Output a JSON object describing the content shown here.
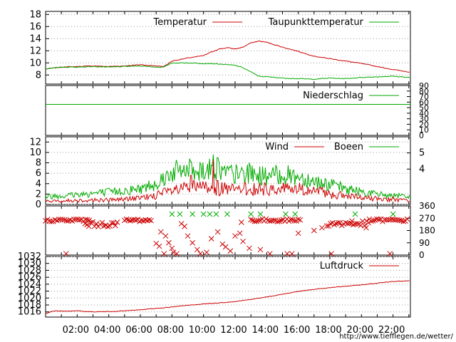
{
  "colors": {
    "temp": "#cc0000",
    "dew": "#00aa00",
    "rain": "#00aa00",
    "wind": "#cc0000",
    "gust": "#00aa00",
    "dir": "#cc0000",
    "dirGust": "#00aa00",
    "press": "#cc0000",
    "grid": "#999999"
  },
  "footer": {
    "url": "http://www.tiefflegen.de/wetter/"
  },
  "chart_data": [
    {
      "type": "line",
      "panel": "temperature",
      "x": [
        0,
        1,
        2,
        3,
        4,
        5,
        6,
        7,
        7.5,
        8,
        9,
        10,
        10.5,
        11,
        11.5,
        12,
        12.5,
        13,
        13.5,
        14,
        14.5,
        15,
        16,
        17,
        18,
        19,
        20,
        21,
        22,
        23
      ],
      "series": [
        {
          "name": "Temperatur",
          "color": "temp",
          "values": [
            9.0,
            9.3,
            9.4,
            9.5,
            9.4,
            9.5,
            9.7,
            9.5,
            9.4,
            10.3,
            10.8,
            11.2,
            11.8,
            12.3,
            12.5,
            12.3,
            12.6,
            13.3,
            13.6,
            13.4,
            13.0,
            12.6,
            11.9,
            11.1,
            10.7,
            10.3,
            9.9,
            9.4,
            8.9,
            8.5
          ]
        },
        {
          "name": "Taupunkttemperatur",
          "color": "dew",
          "values": [
            9.0,
            9.3,
            9.3,
            9.4,
            9.3,
            9.4,
            9.5,
            9.3,
            9.3,
            10.0,
            10.0,
            9.9,
            9.9,
            9.8,
            9.7,
            9.6,
            9.2,
            8.5,
            7.8,
            7.7,
            7.6,
            7.5,
            7.4,
            7.3,
            7.5,
            7.4,
            7.6,
            7.7,
            7.8,
            7.6
          ]
        }
      ],
      "ylim": [
        6.5,
        18.5
      ],
      "yticks": [
        "8",
        "10",
        "12",
        "14",
        "16",
        "18"
      ]
    },
    {
      "type": "line",
      "panel": "precipitation",
      "series": [
        {
          "name": "Niederschlag",
          "color": "rain",
          "constant": 56
        }
      ],
      "ylim": [
        0,
        90
      ],
      "yticks_right": [
        "0",
        "10",
        "20",
        "30",
        "40",
        "50",
        "60",
        "70",
        "80",
        "90"
      ]
    },
    {
      "type": "line",
      "panel": "wind",
      "series": [
        {
          "name": "Wind",
          "color": "wind"
        },
        {
          "name": "Boeen",
          "color": "gust"
        }
      ],
      "envelope_x": [
        0,
        2,
        4,
        6,
        7,
        8,
        9,
        10,
        11,
        12,
        13,
        14,
        15,
        16,
        17,
        18,
        19,
        20,
        21,
        22,
        23
      ],
      "wind_level": [
        0.6,
        0.8,
        0.9,
        1.2,
        1.8,
        2.6,
        3.1,
        3.3,
        3.0,
        2.8,
        3.0,
        2.9,
        3.2,
        3.0,
        2.6,
        2.0,
        1.6,
        1.3,
        1.1,
        1.0,
        0.7
      ],
      "gust_level": [
        1.4,
        1.8,
        2.2,
        2.8,
        3.8,
        5.8,
        6.2,
        6.3,
        6.0,
        5.3,
        5.6,
        5.0,
        5.3,
        5.0,
        4.2,
        3.5,
        2.8,
        2.3,
        1.8,
        1.6,
        1.3
      ],
      "spikes": [
        {
          "x": 10.6,
          "wind": 8.6,
          "gust": 9.6
        },
        {
          "x": 9.2,
          "wind": 5.6,
          "gust": 8.2
        },
        {
          "x": 10.9,
          "wind": 4.6,
          "gust": 9.0
        }
      ],
      "ylim": [
        0,
        13
      ],
      "yticks": [
        "0",
        "2",
        "4",
        "6",
        "8",
        "10",
        "12"
      ],
      "yticks_right": [
        "4",
        "5"
      ]
    },
    {
      "type": "scatter",
      "panel": "wind-direction",
      "ylim": [
        0,
        360
      ],
      "yticks_right": [
        "0",
        "90",
        "180",
        "270",
        "360"
      ],
      "mass_ranges": [
        {
          "x0": 0.0,
          "x1": 2.8,
          "y": 255,
          "spread": 10
        },
        {
          "x0": 2.5,
          "x1": 4.6,
          "y": 225,
          "spread": 18
        },
        {
          "x0": 5.0,
          "x1": 6.8,
          "y": 255,
          "spread": 10
        },
        {
          "x0": 13.0,
          "x1": 16.2,
          "y": 255,
          "spread": 10
        },
        {
          "x0": 17.8,
          "x1": 20.5,
          "y": 230,
          "spread": 20
        },
        {
          "x0": 20.5,
          "x1": 23.0,
          "y": 255,
          "spread": 10
        }
      ],
      "points": [
        [
          7.0,
          85
        ],
        [
          7.2,
          65
        ],
        [
          7.3,
          170
        ],
        [
          7.6,
          140
        ],
        [
          7.8,
          90
        ],
        [
          8.0,
          50
        ],
        [
          8.1,
          20
        ],
        [
          8.3,
          10
        ],
        [
          8.6,
          230
        ],
        [
          8.8,
          210
        ],
        [
          9.0,
          140
        ],
        [
          9.3,
          90
        ],
        [
          9.6,
          40
        ],
        [
          9.8,
          10
        ],
        [
          10.2,
          20
        ],
        [
          10.5,
          120
        ],
        [
          10.9,
          170
        ],
        [
          11.2,
          80
        ],
        [
          11.4,
          60
        ],
        [
          11.7,
          30
        ],
        [
          12.0,
          140
        ],
        [
          12.3,
          160
        ],
        [
          12.5,
          100
        ],
        [
          12.9,
          50
        ],
        [
          12.4,
          240
        ],
        [
          13.6,
          40
        ],
        [
          14.2,
          10
        ],
        [
          16.0,
          160
        ],
        [
          17.0,
          180
        ],
        [
          17.5,
          200
        ],
        [
          18.1,
          10
        ],
        [
          21.8,
          10
        ],
        [
          20.3,
          200
        ],
        [
          19.4,
          250
        ],
        [
          1.3,
          10
        ],
        [
          7.5,
          10
        ],
        [
          15.3,
          10
        ],
        [
          15.6,
          10
        ]
      ],
      "gust_points": [
        [
          8.0,
          300
        ],
        [
          8.5,
          300
        ],
        [
          9.3,
          300
        ],
        [
          10.0,
          300
        ],
        [
          10.4,
          300
        ],
        [
          10.8,
          300
        ],
        [
          11.5,
          300
        ],
        [
          13.0,
          300
        ],
        [
          13.6,
          300
        ],
        [
          15.2,
          300
        ],
        [
          15.8,
          300
        ],
        [
          19.6,
          300
        ],
        [
          22.0,
          300
        ]
      ]
    },
    {
      "type": "line",
      "panel": "pressure",
      "x": [
        0,
        0.5,
        1,
        2,
        3,
        4,
        5,
        6,
        7,
        8,
        9,
        10,
        11,
        12,
        13,
        14,
        15,
        16,
        17,
        18,
        19,
        20,
        21,
        22,
        23
      ],
      "series": [
        {
          "name": "Luftdruck",
          "color": "press",
          "values": [
            1015.5,
            1016.3,
            1016.2,
            1016.3,
            1016.0,
            1016.1,
            1016.3,
            1016.6,
            1017.0,
            1017.4,
            1017.9,
            1018.3,
            1018.6,
            1019.0,
            1019.6,
            1020.3,
            1021.1,
            1021.9,
            1022.5,
            1023.0,
            1023.4,
            1023.8,
            1024.3,
            1024.8,
            1025.0
          ]
        }
      ],
      "ylim": [
        1014.5,
        1032
      ],
      "yticks": [
        "1016",
        "1018",
        "1020",
        "1022",
        "1024",
        "1026",
        "1028",
        "1030",
        "1032"
      ]
    }
  ],
  "x_axis": {
    "min": 0,
    "max": 23.1,
    "labels": [
      "02:00",
      "04:00",
      "06:00",
      "08:00",
      "10:00",
      "12:00",
      "14:00",
      "16:00",
      "18:00",
      "20:00",
      "22:00"
    ]
  }
}
